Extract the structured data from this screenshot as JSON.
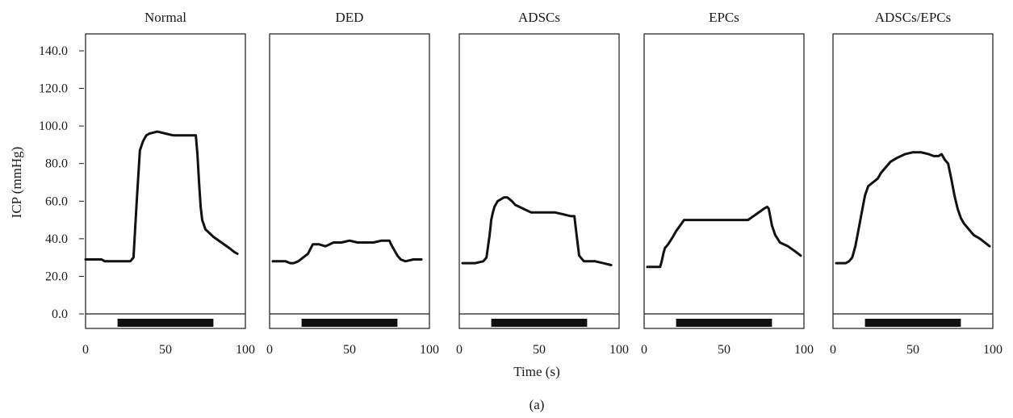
{
  "figure_label": "(a)",
  "ylabel": "ICP (mmHg)",
  "xlabel": "Time (s)",
  "chart_data": {
    "type": "line",
    "ylabel": "ICP (mmHg)",
    "xlabel": "Time (s)",
    "xlim": [
      0,
      100
    ],
    "ylim": [
      0,
      148
    ],
    "y_ticks": [
      0.0,
      20.0,
      40.0,
      60.0,
      80.0,
      100.0,
      120.0,
      140.0
    ],
    "y_tick_labels": [
      "0.0",
      "20.0",
      "40.0",
      "60.0",
      "80.0",
      "100.0",
      "120.0",
      "140.0"
    ],
    "x_ticks": [
      0,
      50,
      100
    ],
    "x_tick_labels": [
      "0",
      "50",
      "100"
    ],
    "grid": false,
    "stimulation_bar": {
      "start": 20,
      "end": 80
    },
    "panels": [
      {
        "title": "Normal",
        "series": [
          {
            "x": [
              0,
              10,
              12,
              28,
              30,
              32,
              34,
              36,
              38,
              40,
              45,
              50,
              55,
              60,
              65,
              69,
              70,
              71,
              72,
              73,
              75,
              80,
              85,
              90,
              93,
              95
            ],
            "y": [
              29,
              29,
              28,
              28,
              30,
              60,
              87,
              92,
              95,
              96,
              97,
              96,
              95,
              95,
              95,
              95,
              85,
              70,
              57,
              50,
              45,
              41,
              38,
              35,
              33,
              32
            ]
          }
        ]
      },
      {
        "title": "DED",
        "series": [
          {
            "x": [
              2,
              10,
              13,
              15,
              18,
              21,
              24,
              27,
              31,
              35,
              40,
              45,
              50,
              55,
              60,
              65,
              70,
              75,
              76,
              78,
              80,
              82,
              85,
              90,
              95
            ],
            "y": [
              28,
              28,
              27,
              27,
              28,
              30,
              32,
              37,
              37,
              36,
              38,
              38,
              39,
              38,
              38,
              38,
              39,
              39,
              37,
              34,
              31,
              29,
              28,
              29,
              29
            ]
          }
        ]
      },
      {
        "title": "ADSCs",
        "series": [
          {
            "x": [
              2,
              10,
              15,
              17,
              19,
              20,
              21,
              22,
              24,
              26,
              28,
              30,
              33,
              35,
              40,
              45,
              50,
              55,
              60,
              65,
              70,
              72,
              73,
              74,
              75,
              78,
              80,
              85,
              90,
              95
            ],
            "y": [
              27,
              27,
              28,
              30,
              42,
              50,
              54,
              57,
              60,
              61,
              62,
              62,
              60,
              58,
              56,
              54,
              54,
              54,
              54,
              53,
              52,
              52,
              45,
              38,
              31,
              28,
              28,
              28,
              27,
              26
            ]
          }
        ]
      },
      {
        "title": "EPCs",
        "series": [
          {
            "x": [
              2,
              10,
              11,
              12,
              13,
              15,
              18,
              20,
              25,
              60,
              65,
              70,
              75,
              77,
              78,
              80,
              82,
              85,
              90,
              95,
              98
            ],
            "y": [
              25,
              25,
              28,
              32,
              35,
              37,
              41,
              44,
              50,
              50,
              50,
              53,
              56,
              57,
              56,
              47,
              42,
              38,
              36,
              33,
              31
            ]
          }
        ]
      },
      {
        "title": "ADSCs/EPCs",
        "series": [
          {
            "x": [
              2,
              8,
              10,
              12,
              14,
              16,
              18,
              20,
              22,
              25,
              28,
              30,
              33,
              36,
              40,
              45,
              50,
              55,
              60,
              63,
              66,
              68,
              70,
              72,
              74,
              76,
              78,
              80,
              82,
              85,
              88,
              92,
              95,
              98
            ],
            "y": [
              27,
              27,
              28,
              30,
              36,
              45,
              54,
              63,
              68,
              70,
              72,
              75,
              78,
              81,
              83,
              85,
              86,
              86,
              85,
              84,
              84,
              85,
              82,
              80,
              72,
              63,
              56,
              51,
              48,
              45,
              42,
              40,
              38,
              36
            ]
          }
        ]
      }
    ]
  }
}
